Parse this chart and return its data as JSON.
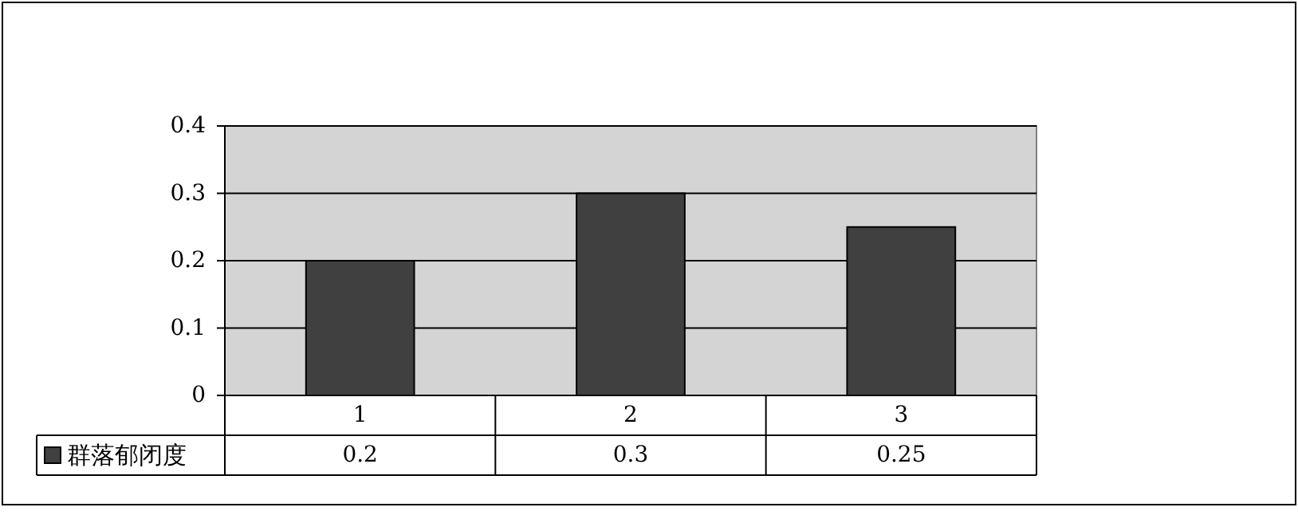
{
  "chart_data": {
    "type": "bar",
    "categories": [
      "1",
      "2",
      "3"
    ],
    "series": [
      {
        "name": "群落郁闭度",
        "color": "#404040",
        "values": [
          0.2,
          0.3,
          0.25
        ]
      }
    ],
    "ylim": [
      0,
      0.4
    ],
    "yticks": [
      0,
      0.1,
      0.2,
      0.3,
      0.4
    ],
    "grid": "y",
    "data_labels": true,
    "legend": "bottom"
  }
}
